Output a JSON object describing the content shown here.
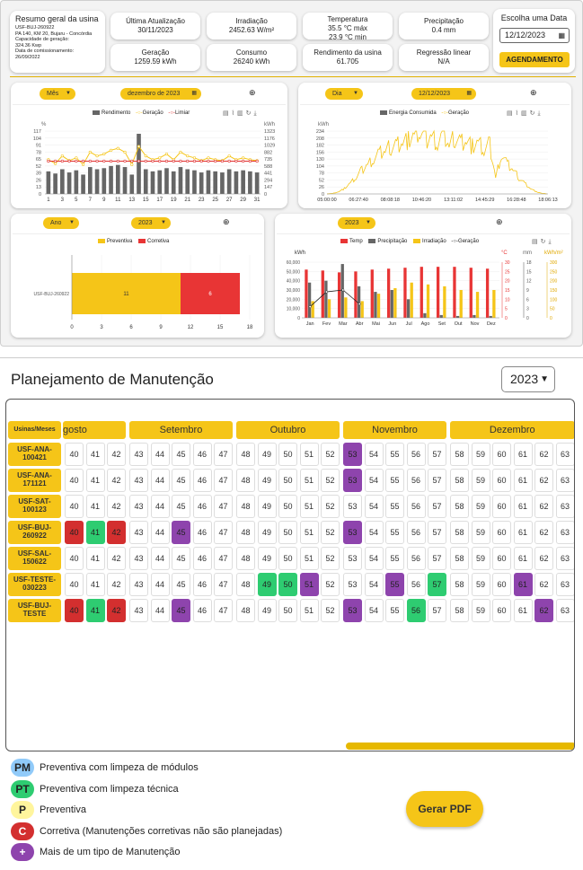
{
  "summary": {
    "title": "Resumo geral da usina",
    "lines": [
      "USF-BUJ-260922",
      "PA 140, KM 20, Bujaru - Concórdia",
      "Capacidade de geração:",
      "324.36 Kwp",
      "Data de comissionamento:",
      "26/09/2022"
    ]
  },
  "stats": [
    {
      "label": "Última Atualização",
      "value": "30/11/2023"
    },
    {
      "label": "Irradiação",
      "value": "2452.63 W/m²"
    },
    {
      "label": "Temperatura",
      "value": "35.5 °C máx",
      "value2": "23.9 °C min"
    },
    {
      "label": "Precipitação",
      "value": "0.4 mm"
    },
    {
      "label": "Geração",
      "value": "1259.59 kWh"
    },
    {
      "label": "Consumo",
      "value": "26240 kWh"
    },
    {
      "label": "Rendimento da usina",
      "value": "61.705"
    },
    {
      "label": "Regressão linear",
      "value": "N/A"
    }
  ],
  "date_picker": {
    "title": "Escolha uma Data",
    "value": "12/12/2023",
    "button": "AGENDAMENTO"
  },
  "chart1": {
    "period_select": "Mês",
    "date_select": "dezembro de 2023",
    "legend": [
      "Rendimento",
      "Geração",
      "Limiar"
    ],
    "left_unit": "%",
    "right_unit": "kWh",
    "colors": {
      "bar": "#666666",
      "line": "#f5c518",
      "limit": "#e03030"
    }
  },
  "chart2": {
    "period_select": "Dia",
    "date_select": "12/12/2023",
    "legend": [
      "Energia Consumida",
      "Geração"
    ],
    "y_unit": "kWh"
  },
  "chart3": {
    "period_select": "Ano",
    "year_select": "2023",
    "legend": [
      "Preventiva",
      "Corretiva"
    ],
    "colors": {
      "preventiva": "#f5c518",
      "corretiva": "#e83535"
    }
  },
  "chart4": {
    "year_select": "2023",
    "legend": [
      "Temp",
      "Precipitação",
      "Irradiação",
      "Geração"
    ],
    "y_unit": "kWh",
    "right_units": [
      "°C",
      "mm",
      "kWh/m²"
    ],
    "colors": {
      "temp": "#e83535",
      "precip": "#666666",
      "irrad": "#f5c518",
      "geracao": "#222222"
    }
  },
  "chart_data": [
    {
      "type": "bar",
      "title": "",
      "x": [
        1,
        2,
        3,
        4,
        5,
        6,
        7,
        8,
        9,
        10,
        11,
        12,
        13,
        14,
        15,
        16,
        17,
        18,
        19,
        20,
        21,
        22,
        23,
        24,
        25,
        26,
        27,
        28,
        29,
        30,
        31
      ],
      "x_ticks": [
        1,
        3,
        5,
        7,
        9,
        11,
        13,
        15,
        17,
        19,
        21,
        23,
        25,
        27,
        29,
        31
      ],
      "y_ticks_left": [
        0,
        13,
        26,
        39,
        52,
        65,
        78,
        91,
        104,
        117
      ],
      "y_ticks_right": [
        0,
        147,
        294,
        441,
        588,
        735,
        882,
        1029,
        1176,
        1323
      ],
      "series": [
        {
          "name": "Rendimento",
          "type": "bar",
          "values": [
            42,
            38,
            46,
            40,
            44,
            36,
            50,
            46,
            48,
            52,
            54,
            50,
            36,
            112,
            46,
            42,
            44,
            48,
            42,
            50,
            46,
            44,
            40,
            44,
            42,
            40,
            46,
            42,
            44,
            42,
            40
          ]
        },
        {
          "name": "Geração",
          "type": "line",
          "values": [
            720,
            640,
            800,
            700,
            760,
            620,
            880,
            800,
            840,
            920,
            960,
            880,
            620,
            1000,
            800,
            720,
            760,
            840,
            720,
            880,
            800,
            760,
            700,
            760,
            720,
            700,
            800,
            720,
            760,
            720,
            700
          ]
        },
        {
          "name": "Limiar",
          "type": "line",
          "values": [
            61,
            61,
            61,
            61,
            61,
            61,
            61,
            61,
            61,
            61,
            61,
            61,
            61,
            61,
            61,
            61,
            61,
            61,
            61,
            61,
            61,
            61,
            61,
            61,
            61,
            61,
            61,
            61,
            61,
            61,
            61
          ]
        }
      ],
      "ylim_left": [
        0,
        117
      ],
      "ylim_right": [
        0,
        1323
      ]
    },
    {
      "type": "line",
      "x_ticks": [
        "05:00:00",
        "06:27:40",
        "08:08:18",
        "10:46:20",
        "13:11:02",
        "14:45:29",
        "16:28:48",
        "18:06:13"
      ],
      "y_ticks": [
        0,
        26,
        52,
        78,
        104,
        130,
        156,
        182,
        208,
        234
      ],
      "series": [
        {
          "name": "Geração",
          "values": [
            0,
            2,
            8,
            20,
            40,
            60,
            90,
            110,
            130,
            150,
            160,
            175,
            185,
            195,
            200,
            215,
            230,
            205,
            215,
            190,
            225,
            180,
            210,
            195,
            200,
            175,
            190,
            160,
            185,
            60,
            150,
            110,
            90,
            60,
            40,
            20,
            8,
            2,
            0
          ]
        }
      ],
      "ylim": [
        0,
        234
      ]
    },
    {
      "type": "bar",
      "orientation": "horizontal",
      "categories": [
        "USF-BUJ-260922"
      ],
      "series": [
        {
          "name": "Preventiva",
          "values": [
            11
          ]
        },
        {
          "name": "Corretiva",
          "values": [
            6
          ]
        }
      ],
      "x_ticks": [
        0,
        3,
        6,
        9,
        12,
        15,
        18
      ],
      "xlim": [
        0,
        18
      ]
    },
    {
      "type": "bar",
      "categories": [
        "Jan",
        "Fev",
        "Mar",
        "Abr",
        "Mai",
        "Jun",
        "Jul",
        "Ago",
        "Set",
        "Out",
        "Nov",
        "Dez"
      ],
      "y_ticks": [
        0,
        10000,
        20000,
        30000,
        40000,
        50000,
        60000
      ],
      "y_tick_labels": [
        "0",
        "10,000",
        "20,000",
        "30,000",
        "40,000",
        "50,000",
        "60,000"
      ],
      "right_axis_1": [
        0,
        5,
        10,
        15,
        20,
        25,
        30
      ],
      "right_axis_2": [
        0,
        3,
        6,
        9,
        12,
        15,
        18
      ],
      "right_axis_3": [
        0,
        50,
        100,
        150,
        200,
        250,
        300
      ],
      "series": [
        {
          "name": "Temp",
          "values": [
            52000,
            51000,
            49000,
            50000,
            52000,
            53000,
            54000,
            55000,
            55000,
            55000,
            54000,
            53000
          ]
        },
        {
          "name": "Precipitação",
          "values": [
            38000,
            40000,
            58000,
            34000,
            28000,
            30000,
            20000,
            5000,
            3000,
            2000,
            3000,
            2000
          ]
        },
        {
          "name": "Irradiação",
          "values": [
            18000,
            20000,
            22000,
            18000,
            26000,
            32000,
            38000,
            36000,
            34000,
            30000,
            28000,
            30000
          ]
        },
        {
          "name": "Geração",
          "values": [
            12000,
            28000,
            30000,
            15000,
            0,
            0,
            0,
            0,
            0,
            0,
            0,
            0
          ]
        }
      ],
      "ylim": [
        0,
        60000
      ]
    }
  ],
  "plan": {
    "title": "Planejamento de Manutenção",
    "year": "2023",
    "header_label": "Usinas/Meses",
    "months": [
      {
        "name": "gosto",
        "weeks": [
          "40",
          "41",
          "42"
        ]
      },
      {
        "name": "Setembro",
        "weeks": [
          "43",
          "44",
          "45",
          "46",
          "47"
        ]
      },
      {
        "name": "Outubro",
        "weeks": [
          "48",
          "49",
          "50",
          "51",
          "52"
        ]
      },
      {
        "name": "Novembro",
        "weeks": [
          "53",
          "54",
          "55",
          "56",
          "57"
        ]
      },
      {
        "name": "Dezembro",
        "weeks": [
          "58",
          "59",
          "60",
          "61",
          "62",
          "63"
        ]
      }
    ],
    "rows": [
      {
        "name": "USF-ANA-100421",
        "marks": {
          "53": "multi"
        }
      },
      {
        "name": "USF-ANA-171121",
        "marks": {
          "53": "multi"
        }
      },
      {
        "name": "USF-SAT-100123",
        "marks": {}
      },
      {
        "name": "USF-BUJ-260922",
        "marks": {
          "40": "corretiva",
          "41": "pt",
          "42": "corretiva",
          "45": "multi",
          "53": "multi"
        }
      },
      {
        "name": "USF-SAL-150622",
        "marks": {}
      },
      {
        "name": "USF-TESTE-030223",
        "marks": {
          "49": "pt",
          "50": "pt",
          "51": "multi",
          "55": "multi",
          "57": "pt",
          "61": "multi"
        }
      },
      {
        "name": "USF-BUJ-TESTE",
        "marks": {
          "40": "corretiva",
          "41": "pt",
          "42": "corretiva",
          "45": "multi",
          "53": "multi",
          "56": "pt",
          "62": "multi"
        }
      }
    ],
    "mark_colors": {
      "corretiva": "#d32f2f",
      "pt": "#2ecc71",
      "multi": "#8e44ad"
    },
    "legend": [
      {
        "code": "PM",
        "label": "Preventiva com limpeza de módulos",
        "color": "#90caf9"
      },
      {
        "code": "PT",
        "label": "Preventiva com limpeza técnica",
        "color": "#2ecc71"
      },
      {
        "code": "P",
        "label": "Preventiva",
        "color": "#fff59d"
      },
      {
        "code": "C",
        "label": "Corretiva (Manutenções corretivas não são planejadas)",
        "color": "#d32f2f"
      },
      {
        "code": "+",
        "label": "Mais de um tipo de Manutenção",
        "color": "#8e44ad"
      }
    ],
    "pdf_button": "Gerar PDF"
  }
}
